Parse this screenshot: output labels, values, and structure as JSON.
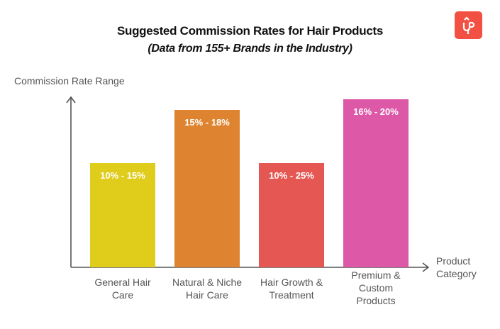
{
  "chart_data": {
    "type": "bar",
    "title": "Suggested Commission Rates for Hair Products",
    "subtitle": "(Data from 155+ Brands in the Industry)",
    "ylabel": "Commission Rate Range",
    "xlabel": "Product Category",
    "categories": [
      "General Hair Care",
      "Natural & Niche Hair Care",
      "Hair Growth & Treatment",
      "Premium & Custom Products"
    ],
    "series": [
      {
        "ranges": [
          [
            10,
            15
          ],
          [
            15,
            18
          ],
          [
            10,
            25
          ],
          [
            16,
            20
          ]
        ],
        "labels": [
          "10% - 15%",
          "15% - 18%",
          "10% - 25%",
          "16% - 20%"
        ]
      }
    ],
    "colors": [
      "#e0cc1a",
      "#de8430",
      "#e45752",
      "#dd58a7"
    ],
    "grid": false,
    "legend": "none"
  },
  "logo": {
    "text": "UP",
    "color": "#f25042"
  }
}
